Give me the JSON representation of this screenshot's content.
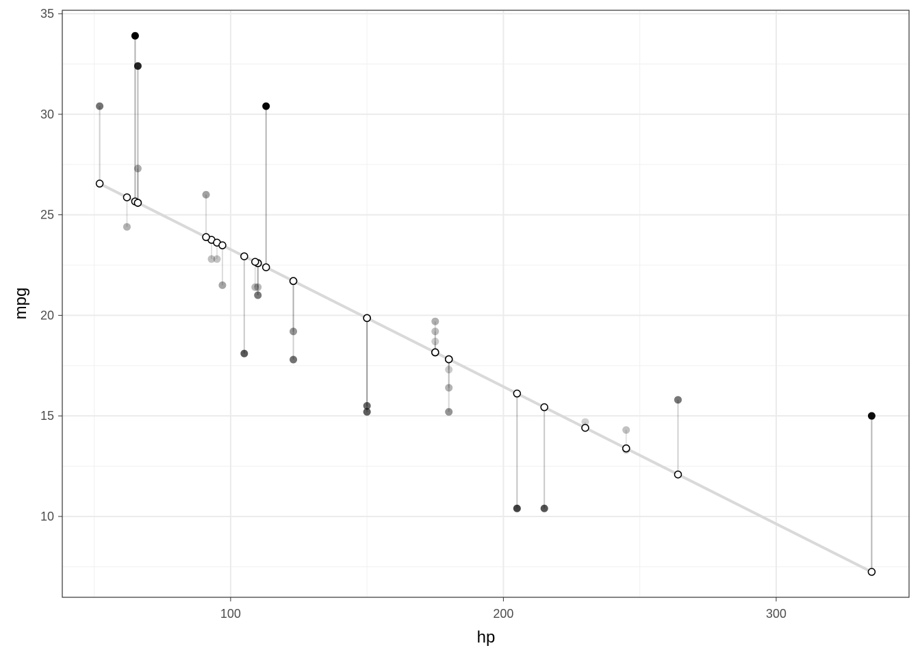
{
  "chart_data": {
    "type": "residual-scatter",
    "x_label": "hp",
    "y_label": "mpg",
    "x": [
      110,
      110,
      93,
      110,
      175,
      105,
      245,
      62,
      95,
      123,
      123,
      180,
      180,
      180,
      205,
      215,
      230,
      66,
      52,
      65,
      97,
      150,
      150,
      245,
      175,
      66,
      91,
      113,
      264,
      175,
      335,
      109
    ],
    "values": [
      21.0,
      21.0,
      22.8,
      21.4,
      18.7,
      18.1,
      14.3,
      24.4,
      22.8,
      19.2,
      17.8,
      16.4,
      17.3,
      15.2,
      10.4,
      10.4,
      14.7,
      32.4,
      30.4,
      33.9,
      21.5,
      15.5,
      15.2,
      13.3,
      19.2,
      27.3,
      26.0,
      30.4,
      15.8,
      19.7,
      15.0,
      21.4
    ],
    "fitted": [
      22.594,
      22.594,
      23.754,
      22.594,
      18.159,
      22.935,
      13.383,
      25.869,
      23.617,
      21.707,
      21.707,
      17.818,
      17.818,
      17.818,
      16.112,
      15.43,
      14.407,
      25.596,
      26.551,
      25.664,
      23.481,
      19.865,
      19.865,
      13.383,
      18.159,
      25.596,
      23.89,
      22.389,
      12.087,
      18.159,
      7.243,
      22.662
    ],
    "color": "#000000",
    "line_color": "#d9d9d9",
    "xlim": [
      38.3,
      348.7
    ],
    "ylim": [
      5.98,
      35.17
    ],
    "xticks": [
      100,
      200,
      300
    ],
    "yticks": [
      10,
      15,
      20,
      25,
      30,
      35
    ],
    "xminor": [
      50,
      150,
      250
    ],
    "yminor": [
      7.5,
      12.5,
      17.5,
      22.5,
      27.5,
      32.5
    ],
    "grid": true
  }
}
